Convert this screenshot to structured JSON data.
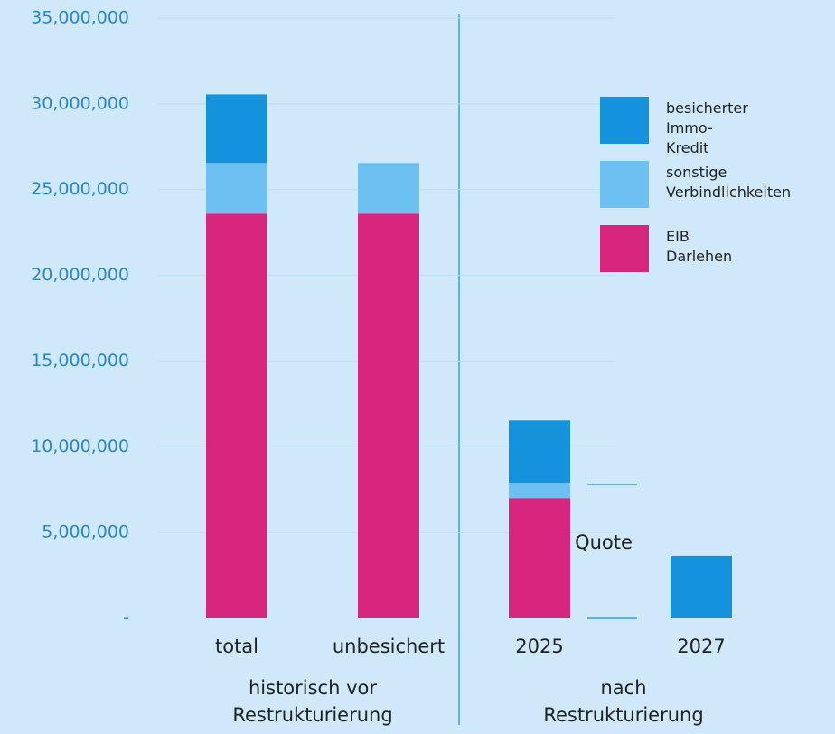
{
  "chart_data": {
    "type": "stacked_bar",
    "categories": [
      "total",
      "unbesichert",
      "2025",
      "2027"
    ],
    "groups": [
      {
        "label": "historisch vor Restrukturierung"
      },
      {
        "label": "nach Restrukturierung"
      }
    ],
    "series": [
      {
        "name": "EIB Darlehen",
        "color": "#d8267f",
        "values": [
          23600000,
          23600000,
          7000000,
          0
        ]
      },
      {
        "name": "sonstige Verbindlichkeiten",
        "color": "#6cc1f2",
        "values": [
          2950000,
          2950000,
          900000,
          0
        ]
      },
      {
        "name": "besicherter Immo-Kredit",
        "color": "#1592dc",
        "values": [
          4000000,
          0,
          3630000,
          3640000
        ]
      }
    ],
    "annotation": "Quote",
    "ylim": [
      0,
      35000000
    ],
    "yticks": [
      {
        "value": 0,
        "label": "-"
      },
      {
        "value": 5000000,
        "label": "5,000,000"
      },
      {
        "value": 10000000,
        "label": "10,000,000"
      },
      {
        "value": 15000000,
        "label": "15,000,000"
      },
      {
        "value": 20000000,
        "label": "20,000,000"
      },
      {
        "value": 25000000,
        "label": "25,000,000"
      },
      {
        "value": 30000000,
        "label": "30,000,000"
      },
      {
        "value": 35000000,
        "label": "35,000,000"
      }
    ],
    "grid": true
  }
}
